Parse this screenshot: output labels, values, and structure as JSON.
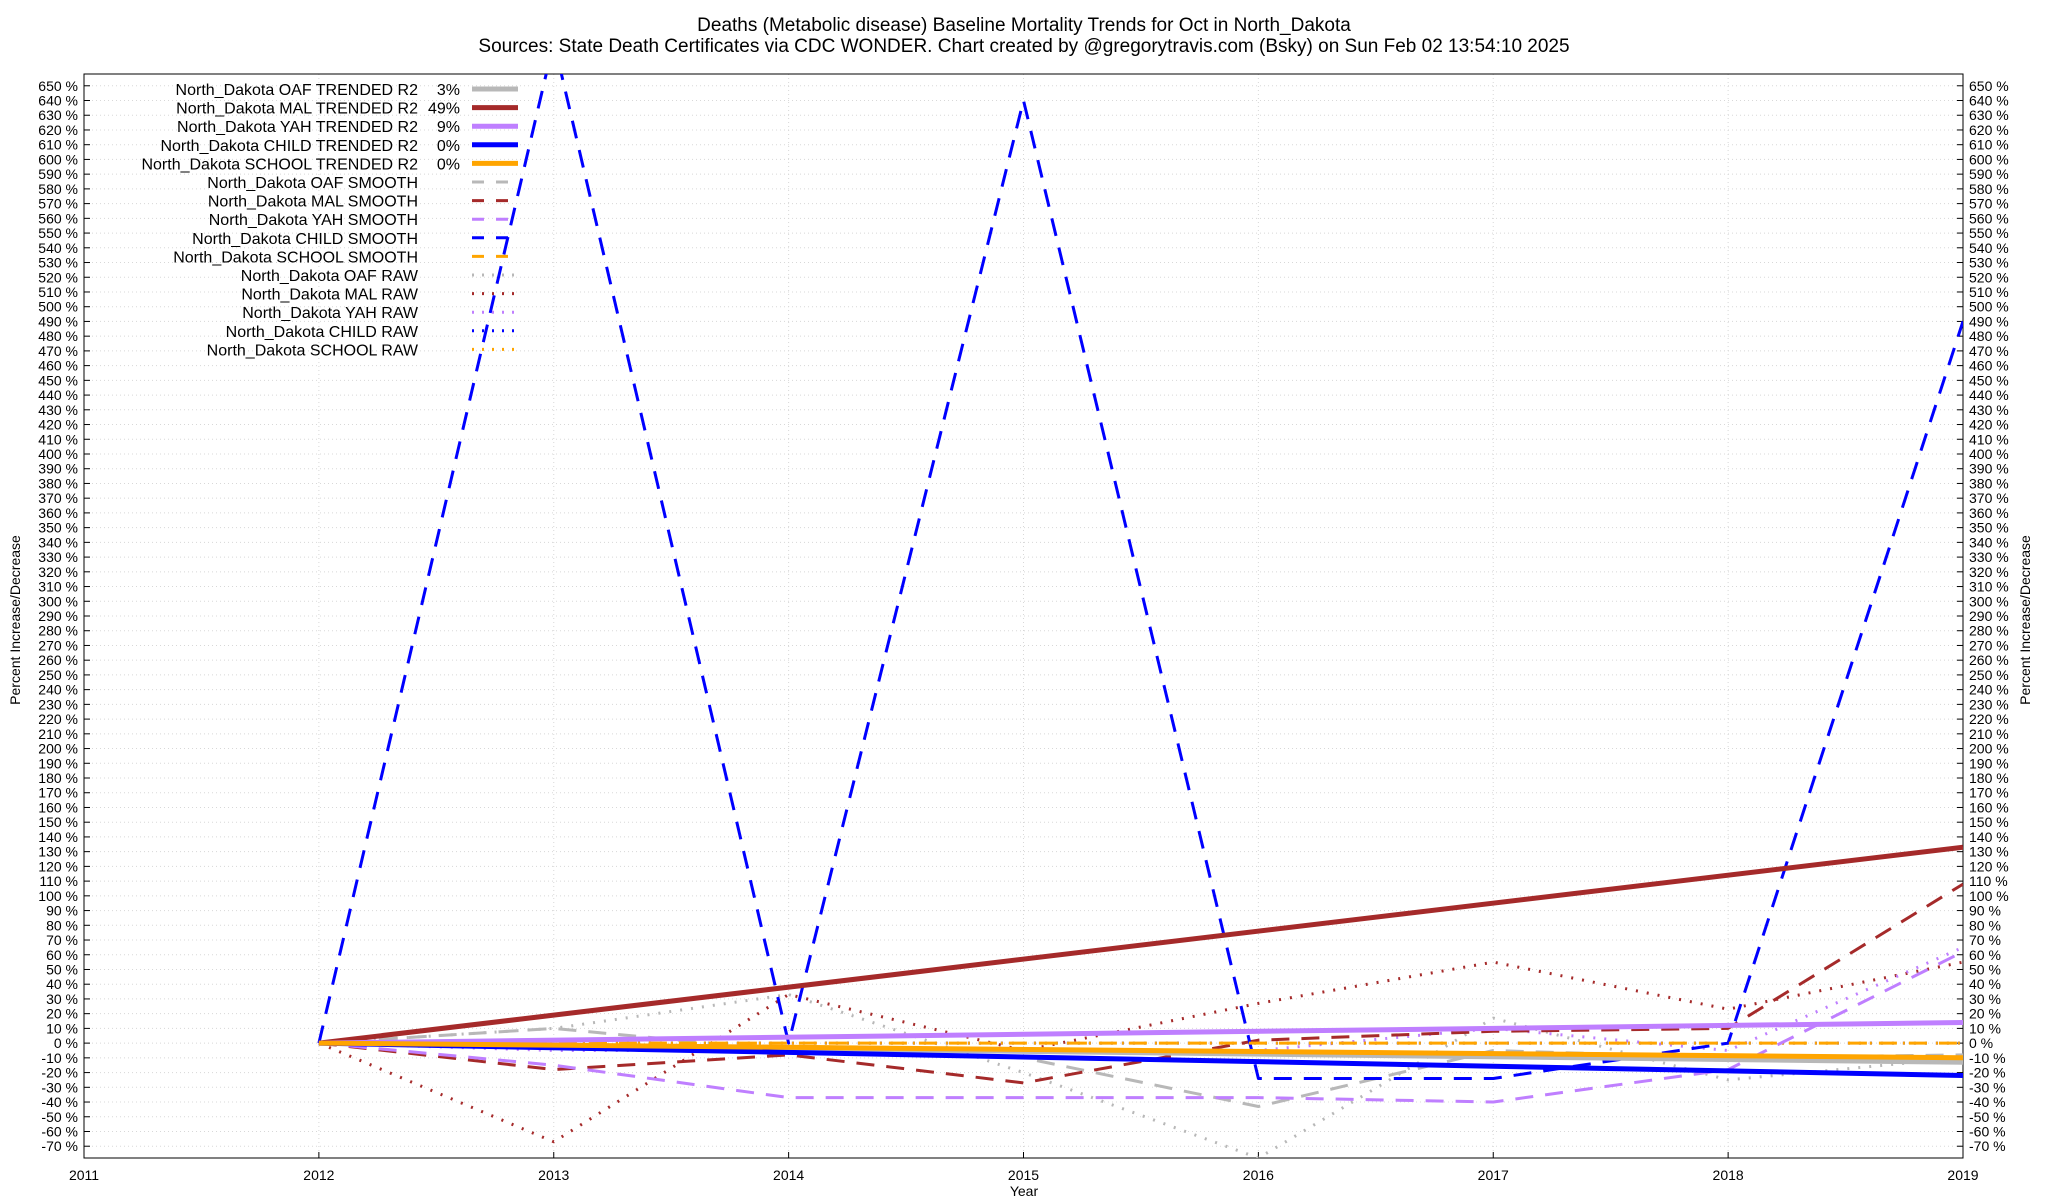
{
  "title_line1": "Deaths (Metabolic disease)  Baseline Mortality Trends for Oct in North_Dakota",
  "title_line2": "Sources: State Death Certificates via CDC WONDER.              Chart created by @gregorytravis.com (Bsky) on Sun Feb 02 13:54:10 2025",
  "chart_data": {
    "type": "line",
    "xlabel": "Year",
    "ylabel": "Percent Increase/Decrease",
    "y2label": "Percent Increase/Decrease",
    "xlim": [
      2011,
      2019
    ],
    "ylim": [
      -78,
      658
    ],
    "x_ticks": [
      2011,
      2012,
      2013,
      2014,
      2015,
      2016,
      2017,
      2018,
      2019
    ],
    "y_tick_start": -70,
    "y_tick_end": 650,
    "y_tick_step": 10,
    "y_tick_suffix": " %",
    "grid": true,
    "legend_position": "top-left",
    "series": [
      {
        "name": "North_Dakota OAF TRENDED R2",
        "r2": "3%",
        "style": "solid",
        "color": "#b8b8b8",
        "x": [
          2012,
          2019
        ],
        "y": [
          0,
          -13
        ]
      },
      {
        "name": "North_Dakota MAL TRENDED R2",
        "r2": "49%",
        "style": "solid",
        "color": "#a52a2a",
        "x": [
          2012,
          2019
        ],
        "y": [
          0,
          133
        ]
      },
      {
        "name": "North_Dakota YAH TRENDED R2",
        "r2": "9%",
        "style": "solid",
        "color": "#bf7fff",
        "x": [
          2012,
          2019
        ],
        "y": [
          0,
          14
        ]
      },
      {
        "name": "North_Dakota CHILD TRENDED R2",
        "r2": "0%",
        "style": "solid",
        "color": "#0000ff",
        "x": [
          2012,
          2019
        ],
        "y": [
          0,
          -22
        ]
      },
      {
        "name": "North_Dakota SCHOOL TRENDED R2",
        "r2": "0%",
        "style": "solid",
        "color": "#ffa500",
        "x": [
          2012,
          2019
        ],
        "y": [
          0,
          -10
        ]
      },
      {
        "name": "North_Dakota OAF SMOOTH",
        "r2": "",
        "style": "dashed",
        "color": "#b8b8b8",
        "x": [
          2012,
          2013,
          2014,
          2015,
          2016,
          2017,
          2018,
          2019
        ],
        "y": [
          0,
          10,
          -5,
          -10,
          -43,
          -5,
          -10,
          -8
        ]
      },
      {
        "name": "North_Dakota MAL SMOOTH",
        "r2": "",
        "style": "dashed",
        "color": "#a52a2a",
        "x": [
          2012,
          2013,
          2014,
          2015,
          2016,
          2017,
          2018,
          2019
        ],
        "y": [
          0,
          -18,
          -8,
          -27,
          2,
          8,
          10,
          108
        ]
      },
      {
        "name": "North_Dakota YAH SMOOTH",
        "r2": "",
        "style": "dashed",
        "color": "#bf7fff",
        "x": [
          2012,
          2013,
          2014,
          2015,
          2016,
          2017,
          2018,
          2019
        ],
        "y": [
          0,
          -15,
          -37,
          -37,
          -37,
          -40,
          -18,
          62
        ]
      },
      {
        "name": "North_Dakota CHILD SMOOTH",
        "r2": "",
        "style": "dashed",
        "color": "#0000ff",
        "x": [
          2012,
          2013,
          2014,
          2015,
          2016,
          2017,
          2018,
          2019
        ],
        "y": [
          0,
          680,
          0,
          640,
          -24,
          -24,
          0,
          490
        ]
      },
      {
        "name": "North_Dakota SCHOOL SMOOTH",
        "r2": "",
        "style": "dashed",
        "color": "#ffa500",
        "x": [
          2012,
          2013,
          2014,
          2015,
          2016,
          2017,
          2018,
          2019
        ],
        "y": [
          0,
          0,
          0,
          0,
          0,
          0,
          0,
          0
        ]
      },
      {
        "name": "North_Dakota OAF RAW",
        "r2": "",
        "style": "dotted",
        "color": "#b8b8b8",
        "x": [
          2012,
          2013,
          2014,
          2015,
          2016,
          2017,
          2018,
          2019
        ],
        "y": [
          0,
          10,
          33,
          -20,
          -78,
          17,
          -25,
          -10
        ]
      },
      {
        "name": "North_Dakota MAL RAW",
        "r2": "",
        "style": "dotted",
        "color": "#a52a2a",
        "x": [
          2012,
          2013,
          2014,
          2015,
          2016,
          2017,
          2018,
          2019
        ],
        "y": [
          0,
          -67,
          33,
          -5,
          27,
          55,
          23,
          55
        ]
      },
      {
        "name": "North_Dakota YAH RAW",
        "r2": "",
        "style": "dotted",
        "color": "#bf7fff",
        "x": [
          2012,
          2013,
          2014,
          2015,
          2016,
          2017,
          2018,
          2019
        ],
        "y": [
          0,
          -5,
          -5,
          -5,
          -5,
          10,
          -5,
          65
        ]
      },
      {
        "name": "North_Dakota CHILD RAW",
        "r2": "",
        "style": "dotted",
        "color": "#0000ff",
        "x": [
          2012,
          2013,
          2014,
          2015,
          2016,
          2017,
          2018,
          2019
        ],
        "y": [
          0,
          0,
          0,
          0,
          0,
          0,
          0,
          0
        ]
      },
      {
        "name": "North_Dakota SCHOOL RAW",
        "r2": "",
        "style": "dotted",
        "color": "#ffa500",
        "x": [
          2012,
          2013,
          2014,
          2015,
          2016,
          2017,
          2018,
          2019
        ],
        "y": [
          0,
          0,
          0,
          0,
          0,
          0,
          0,
          0
        ]
      }
    ]
  }
}
